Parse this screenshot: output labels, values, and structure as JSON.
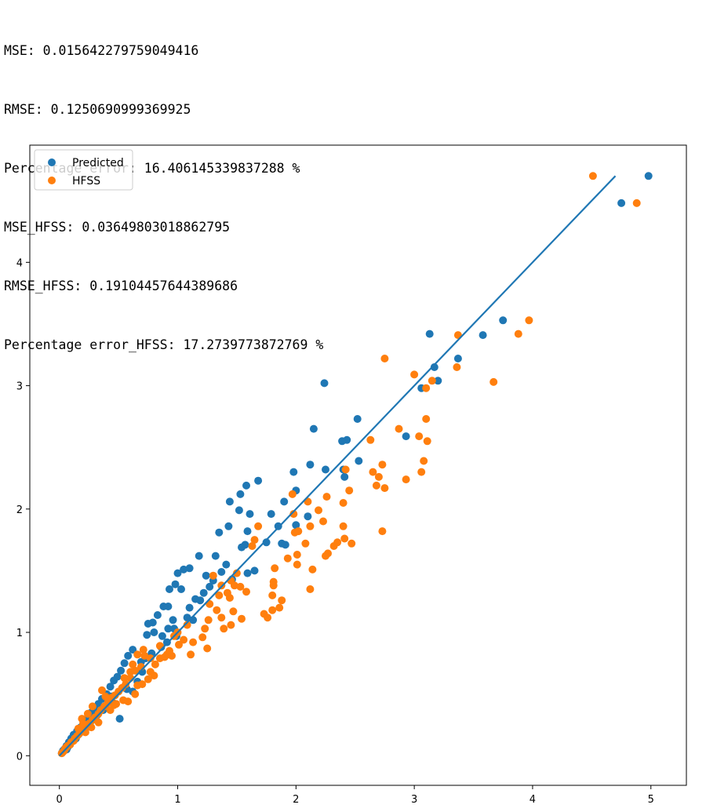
{
  "output_lines": [
    "MSE: 0.015642279759049416",
    "RMSE: 0.1250690999369925",
    "Percentage error: 16.406145339837288 %",
    "MSE_HFSS: 0.03649803018862795",
    "RMSE_HFSS: 0.19104457644389686",
    "Percentage error_HFSS: 17.2739773872769 %"
  ],
  "colors": {
    "predicted": "#1f77b4",
    "hfss": "#ff7f0e",
    "line": "#1f77b4"
  },
  "chart_data": {
    "type": "scatter",
    "title": "",
    "xlabel": "",
    "ylabel": "",
    "xlim": [
      -0.25,
      5.3
    ],
    "ylim": [
      -0.24,
      4.95
    ],
    "xticks": [
      "0",
      "1",
      "2",
      "3",
      "4",
      "5"
    ],
    "yticks": [
      "0",
      "1",
      "2",
      "3",
      "4"
    ],
    "grid": false,
    "legend": {
      "placement": "top-left",
      "entries": [
        "Predicted",
        "HFSS"
      ]
    },
    "reference_line": {
      "x": [
        0,
        4.7
      ],
      "y": [
        0,
        4.7
      ]
    },
    "series": [
      {
        "name": "Predicted",
        "points": [
          [
            4.98,
            4.7
          ],
          [
            4.75,
            4.48
          ],
          [
            3.75,
            3.53
          ],
          [
            3.58,
            3.41
          ],
          [
            3.37,
            3.22
          ],
          [
            3.13,
            3.42
          ],
          [
            3.17,
            3.15
          ],
          [
            3.2,
            3.04
          ],
          [
            3.06,
            2.98
          ],
          [
            2.93,
            2.59
          ],
          [
            2.24,
            3.02
          ],
          [
            2.52,
            2.73
          ],
          [
            2.43,
            2.56
          ],
          [
            2.39,
            2.55
          ],
          [
            2.15,
            2.65
          ],
          [
            2.12,
            2.36
          ],
          [
            2.25,
            2.32
          ],
          [
            2.4,
            2.32
          ],
          [
            2.41,
            2.26
          ],
          [
            2.53,
            2.39
          ],
          [
            1.98,
            2.3
          ],
          [
            1.68,
            2.23
          ],
          [
            1.58,
            2.19
          ],
          [
            1.53,
            2.12
          ],
          [
            1.44,
            2.06
          ],
          [
            1.52,
            1.99
          ],
          [
            1.61,
            1.96
          ],
          [
            1.43,
            1.86
          ],
          [
            1.35,
            1.81
          ],
          [
            1.59,
            1.82
          ],
          [
            1.57,
            1.71
          ],
          [
            1.54,
            1.69
          ],
          [
            1.79,
            1.96
          ],
          [
            1.75,
            1.73
          ],
          [
            1.85,
            1.86
          ],
          [
            1.91,
            1.71
          ],
          [
            1.88,
            1.72
          ],
          [
            2.0,
            1.87
          ],
          [
            2.1,
            1.94
          ],
          [
            2.0,
            2.15
          ],
          [
            1.9,
            2.06
          ],
          [
            1.65,
            1.5
          ],
          [
            1.59,
            1.48
          ],
          [
            1.41,
            1.55
          ],
          [
            1.32,
            1.62
          ],
          [
            1.18,
            1.62
          ],
          [
            1.1,
            1.52
          ],
          [
            1.05,
            1.51
          ],
          [
            1.0,
            1.48
          ],
          [
            0.98,
            1.39
          ],
          [
            0.93,
            1.35
          ],
          [
            1.03,
            1.35
          ],
          [
            1.22,
            1.32
          ],
          [
            1.19,
            1.26
          ],
          [
            1.15,
            1.27
          ],
          [
            0.92,
            1.21
          ],
          [
            0.88,
            1.21
          ],
          [
            0.83,
            1.14
          ],
          [
            0.92,
            1.03
          ],
          [
            0.79,
            1.08
          ],
          [
            0.75,
            1.07
          ],
          [
            0.74,
            0.98
          ],
          [
            0.8,
            1.0
          ],
          [
            0.97,
            1.03
          ],
          [
            0.99,
            0.97
          ],
          [
            0.91,
            0.92
          ],
          [
            0.86,
            0.88
          ],
          [
            0.78,
            0.83
          ],
          [
            0.73,
            0.79
          ],
          [
            0.69,
            0.76
          ],
          [
            0.62,
            0.86
          ],
          [
            0.58,
            0.81
          ],
          [
            0.55,
            0.75
          ],
          [
            0.52,
            0.69
          ],
          [
            0.49,
            0.64
          ],
          [
            0.46,
            0.61
          ],
          [
            0.43,
            0.56
          ],
          [
            0.4,
            0.5
          ],
          [
            0.36,
            0.46
          ],
          [
            0.33,
            0.42
          ],
          [
            0.3,
            0.38
          ],
          [
            0.27,
            0.35
          ],
          [
            0.24,
            0.31
          ],
          [
            0.21,
            0.27
          ],
          [
            0.18,
            0.23
          ],
          [
            0.15,
            0.2
          ],
          [
            0.12,
            0.17
          ],
          [
            0.1,
            0.14
          ],
          [
            0.08,
            0.11
          ],
          [
            0.06,
            0.08
          ],
          [
            0.05,
            0.06
          ],
          [
            0.04,
            0.05
          ],
          [
            0.03,
            0.04
          ],
          [
            0.03,
            0.03
          ],
          [
            0.02,
            0.02
          ],
          [
            0.51,
            0.3
          ],
          [
            0.62,
            0.52
          ],
          [
            0.66,
            0.6
          ],
          [
            0.7,
            0.68
          ],
          [
            0.57,
            0.54
          ],
          [
            0.45,
            0.43
          ],
          [
            0.37,
            0.37
          ],
          [
            0.28,
            0.29
          ],
          [
            0.19,
            0.2
          ],
          [
            0.11,
            0.12
          ],
          [
            0.44,
            0.48
          ],
          [
            0.39,
            0.4
          ],
          [
            0.32,
            0.33
          ],
          [
            0.26,
            0.27
          ],
          [
            0.22,
            0.22
          ],
          [
            0.16,
            0.17
          ],
          [
            0.14,
            0.14
          ],
          [
            0.09,
            0.09
          ],
          [
            0.07,
            0.07
          ],
          [
            0.06,
            0.05
          ],
          [
            1.27,
            1.37
          ],
          [
            1.3,
            1.42
          ],
          [
            1.37,
            1.49
          ],
          [
            1.46,
            1.43
          ],
          [
            1.24,
            1.46
          ],
          [
            1.1,
            1.2
          ],
          [
            1.08,
            1.12
          ],
          [
            1.13,
            1.1
          ],
          [
            0.87,
            0.97
          ],
          [
            0.96,
            1.1
          ]
        ]
      },
      {
        "name": "HFSS",
        "points": [
          [
            4.51,
            4.7
          ],
          [
            4.88,
            4.48
          ],
          [
            3.97,
            3.53
          ],
          [
            3.88,
            3.42
          ],
          [
            3.37,
            3.41
          ],
          [
            3.36,
            3.15
          ],
          [
            3.67,
            3.03
          ],
          [
            3.15,
            3.04
          ],
          [
            3.0,
            3.09
          ],
          [
            3.1,
            2.98
          ],
          [
            2.75,
            3.22
          ],
          [
            2.87,
            2.65
          ],
          [
            3.1,
            2.73
          ],
          [
            3.04,
            2.59
          ],
          [
            3.11,
            2.55
          ],
          [
            2.63,
            2.56
          ],
          [
            2.73,
            2.36
          ],
          [
            2.65,
            2.3
          ],
          [
            2.7,
            2.26
          ],
          [
            3.08,
            2.39
          ],
          [
            3.06,
            2.3
          ],
          [
            2.93,
            2.24
          ],
          [
            2.68,
            2.19
          ],
          [
            2.75,
            2.17
          ],
          [
            2.42,
            2.32
          ],
          [
            2.45,
            2.15
          ],
          [
            2.4,
            2.05
          ],
          [
            2.26,
            2.1
          ],
          [
            1.97,
            2.12
          ],
          [
            2.1,
            2.06
          ],
          [
            1.98,
            1.96
          ],
          [
            2.19,
            1.99
          ],
          [
            2.23,
            1.9
          ],
          [
            2.4,
            1.86
          ],
          [
            2.41,
            1.76
          ],
          [
            2.47,
            1.72
          ],
          [
            2.35,
            1.73
          ],
          [
            2.32,
            1.7
          ],
          [
            2.27,
            1.64
          ],
          [
            2.25,
            1.62
          ],
          [
            2.14,
            1.51
          ],
          [
            2.08,
            1.72
          ],
          [
            2.02,
            1.82
          ],
          [
            2.01,
            1.63
          ],
          [
            1.99,
            1.81
          ],
          [
            1.93,
            1.6
          ],
          [
            2.01,
            1.55
          ],
          [
            2.12,
            1.86
          ],
          [
            2.73,
            1.82
          ],
          [
            1.82,
            1.52
          ],
          [
            1.81,
            1.41
          ],
          [
            1.81,
            1.38
          ],
          [
            1.8,
            1.3
          ],
          [
            1.8,
            1.18
          ],
          [
            1.88,
            1.26
          ],
          [
            1.86,
            1.2
          ],
          [
            1.73,
            1.15
          ],
          [
            1.76,
            1.12
          ],
          [
            2.12,
            1.35
          ],
          [
            1.65,
            1.75
          ],
          [
            1.63,
            1.7
          ],
          [
            1.68,
            1.86
          ],
          [
            1.5,
            1.48
          ],
          [
            1.45,
            1.42
          ],
          [
            1.42,
            1.32
          ],
          [
            1.44,
            1.28
          ],
          [
            1.37,
            1.38
          ],
          [
            1.3,
            1.46
          ],
          [
            1.35,
            1.3
          ],
          [
            1.33,
            1.18
          ],
          [
            1.48,
            1.38
          ],
          [
            1.53,
            1.37
          ],
          [
            1.58,
            1.33
          ],
          [
            1.47,
            1.17
          ],
          [
            1.54,
            1.11
          ],
          [
            1.45,
            1.06
          ],
          [
            1.37,
            1.12
          ],
          [
            1.39,
            1.03
          ],
          [
            1.27,
            1.23
          ],
          [
            1.26,
            1.1
          ],
          [
            1.23,
            1.03
          ],
          [
            1.21,
            0.96
          ],
          [
            1.25,
            0.87
          ],
          [
            1.13,
            0.92
          ],
          [
            1.11,
            0.82
          ],
          [
            1.05,
            0.94
          ],
          [
            1.08,
            1.06
          ],
          [
            1.0,
            1.0
          ],
          [
            0.97,
            0.97
          ],
          [
            0.95,
            0.81
          ],
          [
            0.91,
            0.82
          ],
          [
            0.85,
            0.89
          ],
          [
            0.81,
            0.74
          ],
          [
            0.72,
            0.81
          ],
          [
            0.69,
            0.72
          ],
          [
            0.64,
            0.69
          ],
          [
            0.66,
            0.57
          ],
          [
            0.6,
            0.63
          ],
          [
            0.56,
            0.58
          ],
          [
            0.53,
            0.55
          ],
          [
            0.5,
            0.52
          ],
          [
            0.47,
            0.49
          ],
          [
            0.44,
            0.47
          ],
          [
            0.41,
            0.43
          ],
          [
            0.38,
            0.4
          ],
          [
            0.35,
            0.37
          ],
          [
            0.33,
            0.34
          ],
          [
            0.3,
            0.31
          ],
          [
            0.28,
            0.29
          ],
          [
            0.25,
            0.26
          ],
          [
            0.23,
            0.24
          ],
          [
            0.21,
            0.22
          ],
          [
            0.19,
            0.2
          ],
          [
            0.17,
            0.18
          ],
          [
            0.15,
            0.16
          ],
          [
            0.13,
            0.14
          ],
          [
            0.12,
            0.12
          ],
          [
            0.1,
            0.11
          ],
          [
            0.09,
            0.09
          ],
          [
            0.07,
            0.08
          ],
          [
            0.06,
            0.07
          ],
          [
            0.05,
            0.06
          ],
          [
            0.04,
            0.04
          ],
          [
            0.03,
            0.03
          ],
          [
            0.02,
            0.02
          ],
          [
            0.36,
            0.53
          ],
          [
            0.39,
            0.48
          ],
          [
            0.48,
            0.42
          ],
          [
            0.54,
            0.45
          ],
          [
            0.58,
            0.44
          ],
          [
            0.64,
            0.5
          ],
          [
            0.7,
            0.58
          ],
          [
            0.77,
            0.68
          ],
          [
            0.8,
            0.65
          ],
          [
            0.75,
            0.62
          ],
          [
            0.28,
            0.4
          ],
          [
            0.24,
            0.34
          ],
          [
            0.19,
            0.3
          ],
          [
            0.2,
            0.26
          ],
          [
            0.16,
            0.22
          ],
          [
            0.22,
            0.19
          ],
          [
            0.27,
            0.23
          ],
          [
            0.33,
            0.27
          ],
          [
            0.43,
            0.37
          ],
          [
            0.46,
            0.41
          ],
          [
            0.55,
            0.63
          ],
          [
            0.6,
            0.68
          ],
          [
            0.62,
            0.74
          ],
          [
            0.66,
            0.82
          ],
          [
            0.71,
            0.86
          ],
          [
            0.77,
            0.79
          ],
          [
            0.85,
            0.79
          ],
          [
            0.89,
            0.8
          ],
          [
            0.93,
            0.85
          ],
          [
            1.01,
            0.9
          ]
        ]
      }
    ]
  }
}
